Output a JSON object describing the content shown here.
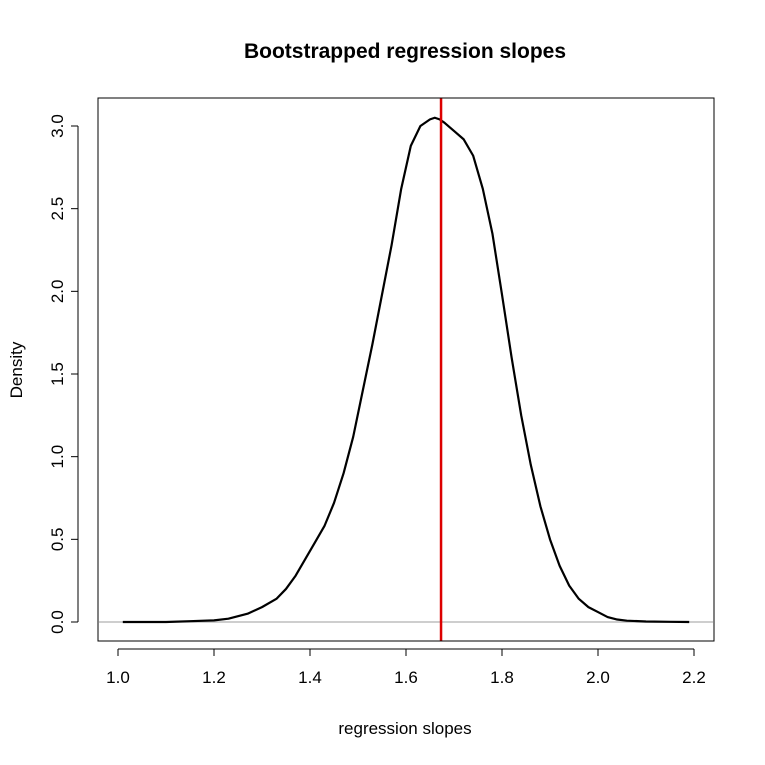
{
  "chart_data": {
    "type": "line",
    "title": "Bootstrapped regression slopes",
    "xlabel": "regression slopes",
    "ylabel": "Density",
    "xlim": [
      1.0,
      2.2
    ],
    "ylim": [
      0.0,
      3.0
    ],
    "x_ticks": [
      "1.0",
      "1.2",
      "1.4",
      "1.6",
      "1.8",
      "2.0",
      "2.2"
    ],
    "y_ticks": [
      "0.0",
      "0.5",
      "1.0",
      "1.5",
      "2.0",
      "2.5",
      "3.0"
    ],
    "grid": false,
    "legend": "none",
    "series": [
      {
        "color": "#000000",
        "x": [
          1.01,
          1.1,
          1.15,
          1.2,
          1.23,
          1.27,
          1.3,
          1.33,
          1.35,
          1.37,
          1.39,
          1.41,
          1.43,
          1.45,
          1.47,
          1.49,
          1.51,
          1.53,
          1.55,
          1.57,
          1.59,
          1.61,
          1.63,
          1.65,
          1.66,
          1.67,
          1.68,
          1.7,
          1.72,
          1.74,
          1.76,
          1.78,
          1.8,
          1.82,
          1.84,
          1.86,
          1.88,
          1.9,
          1.92,
          1.94,
          1.96,
          1.98,
          2.0,
          2.02,
          2.04,
          2.06,
          2.1,
          2.15,
          2.19
        ],
        "y": [
          0.0,
          0.0,
          0.005,
          0.01,
          0.02,
          0.05,
          0.09,
          0.14,
          0.2,
          0.28,
          0.38,
          0.48,
          0.58,
          0.72,
          0.9,
          1.12,
          1.4,
          1.68,
          1.98,
          2.28,
          2.62,
          2.88,
          3.0,
          3.04,
          3.05,
          3.04,
          3.02,
          2.97,
          2.92,
          2.82,
          2.62,
          2.35,
          1.98,
          1.6,
          1.25,
          0.95,
          0.7,
          0.5,
          0.34,
          0.22,
          0.14,
          0.09,
          0.06,
          0.03,
          0.015,
          0.008,
          0.003,
          0.001,
          0.0
        ]
      }
    ],
    "reference_lines": [
      {
        "orientation": "vertical",
        "x": 1.673,
        "color": "#dd0000"
      },
      {
        "orientation": "horizontal",
        "y": 0.0,
        "color": "#bebebe"
      }
    ]
  }
}
